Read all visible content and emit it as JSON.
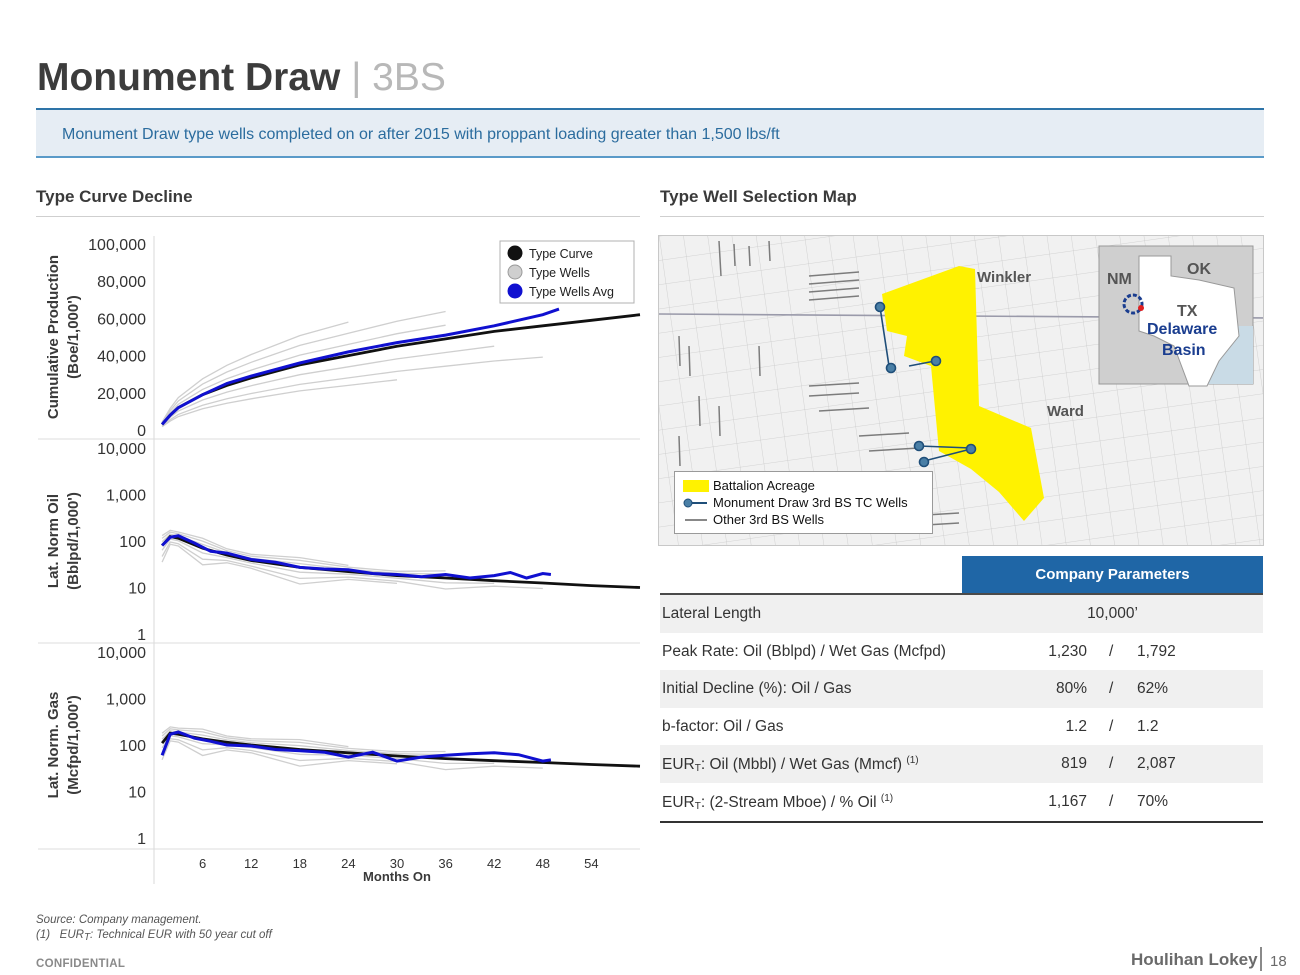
{
  "header": {
    "title": "Monument Draw",
    "separator": "|",
    "subtitle": "3BS",
    "banner": "Monument Draw type wells completed on or after 2015 with proppant loading greater than 1,500 lbs/ft"
  },
  "sections": {
    "left_title": "Type Curve Decline",
    "right_title": "Type Well Selection Map"
  },
  "chart_legend": [
    "Type Curve",
    "Type Wells",
    "Type Wells Avg"
  ],
  "colors": {
    "type_curve": "#111111",
    "type_wells": "#cfcfcf",
    "type_wells_avg": "#1010d0",
    "acreage": "#fff200",
    "accent_blue": "#1f66a6",
    "tc_wells": "#1f4e79"
  },
  "chart_data": [
    {
      "type": "line",
      "panel": "cumulative",
      "ylabel": "Cumulative Production (Boe/1,000')",
      "ylim": [
        0,
        100000
      ],
      "yticks": [
        "100,000",
        "80,000",
        "60,000",
        "40,000",
        "20,000",
        "0"
      ],
      "xlim": [
        0,
        60
      ],
      "series": [
        {
          "name": "Type Curve",
          "x": [
            1,
            2,
            3,
            6,
            9,
            12,
            18,
            24,
            30,
            36,
            42,
            48,
            54,
            60
          ],
          "y": [
            3000,
            8000,
            12000,
            19000,
            24000,
            28000,
            35000,
            40000,
            45000,
            49000,
            53000,
            56000,
            59000,
            62000
          ]
        },
        {
          "name": "Type Wells Avg",
          "x": [
            1,
            2,
            3,
            6,
            9,
            12,
            18,
            24,
            30,
            36,
            42,
            48,
            50
          ],
          "y": [
            3000,
            8000,
            12000,
            19000,
            25000,
            29000,
            36000,
            42000,
            47000,
            51000,
            56000,
            62000,
            65000
          ]
        }
      ]
    },
    {
      "type": "line",
      "panel": "oil_rate",
      "ylabel": "Lat. Norm Oil (Bblpd/1,000')",
      "yscale": "log",
      "ylim": [
        1,
        10000
      ],
      "yticks": [
        "10,000",
        "1,000",
        "100",
        "10",
        "1"
      ],
      "xlim": [
        0,
        60
      ],
      "series": [
        {
          "name": "Type Curve",
          "x": [
            1,
            2,
            3,
            6,
            9,
            12,
            18,
            24,
            30,
            36,
            42,
            48,
            54,
            60
          ],
          "y": [
            80,
            125,
            115,
            70,
            50,
            38,
            27,
            22,
            18,
            16,
            14,
            12.5,
            11,
            10
          ]
        },
        {
          "name": "Type Wells Avg",
          "x": [
            1,
            2,
            3,
            5,
            7,
            9,
            12,
            15,
            18,
            21,
            24,
            27,
            30,
            33,
            36,
            39,
            42,
            44,
            46,
            48,
            49
          ],
          "y": [
            80,
            120,
            130,
            90,
            60,
            55,
            40,
            35,
            27,
            25,
            24,
            20,
            19,
            17,
            19,
            16,
            18,
            21,
            16,
            20,
            19
          ]
        }
      ]
    },
    {
      "type": "line",
      "panel": "gas_rate",
      "ylabel": "Lat. Norm. Gas (Mcfpd/1,000')",
      "yscale": "log",
      "ylim": [
        1,
        10000
      ],
      "yticks": [
        "10,000",
        "1,000",
        "100",
        "10",
        "1"
      ],
      "xlabel": "Months On",
      "xlim": [
        0,
        60
      ],
      "xticks": [
        6,
        12,
        18,
        24,
        30,
        36,
        42,
        48,
        54
      ],
      "series": [
        {
          "name": "Type Curve",
          "x": [
            1,
            2,
            3,
            6,
            9,
            12,
            18,
            24,
            30,
            36,
            42,
            48,
            54,
            60
          ],
          "y": [
            110,
            180,
            170,
            135,
            115,
            100,
            80,
            68,
            58,
            51,
            46,
            42,
            38,
            35
          ]
        },
        {
          "name": "Type Wells Avg",
          "x": [
            1,
            2,
            3,
            5,
            7,
            9,
            12,
            15,
            18,
            21,
            24,
            27,
            30,
            33,
            36,
            39,
            42,
            45,
            48,
            49
          ],
          "y": [
            60,
            170,
            190,
            140,
            120,
            100,
            95,
            80,
            75,
            70,
            55,
            70,
            45,
            55,
            60,
            65,
            68,
            62,
            45,
            48
          ]
        }
      ]
    }
  ],
  "map": {
    "labels": {
      "winkler": "Winkler",
      "ward": "Ward",
      "nm": "NM",
      "ok": "OK",
      "tx": "TX",
      "delaware": "Delaware",
      "basin": "Basin"
    },
    "legend": [
      "Battalion Acreage",
      "Monument Draw 3rd BS TC Wells",
      "Other 3rd BS Wells"
    ]
  },
  "parameters": {
    "header": "Company Parameters",
    "rows": [
      {
        "label": "Lateral Length",
        "value": "10,000’"
      },
      {
        "label": "Peak Rate: Oil (Bblpd) / Wet Gas (Mcfpd)",
        "v1": "1,230",
        "sep": "/",
        "v2": "1,792"
      },
      {
        "label": "Initial Decline (%): Oil / Gas",
        "v1": "80%",
        "sep": "/",
        "v2": "62%"
      },
      {
        "label": "b-factor: Oil / Gas",
        "v1": "1.2",
        "sep": "/",
        "v2": "1.2"
      },
      {
        "label_pre": "EUR",
        "label_sub": "T",
        "label_post": ": Oil (Mbbl) / Wet Gas (Mmcf) ",
        "label_sup": "(1)",
        "v1": "819",
        "sep": "/",
        "v2": "2,087"
      },
      {
        "label_pre": "EUR",
        "label_sub": "T",
        "label_post": ": (2-Stream Mboe) / % Oil ",
        "label_sup": "(1)",
        "v1": "1,167",
        "sep": "/",
        "v2": "70%"
      }
    ]
  },
  "footer": {
    "source": "Source: Company management.",
    "note_num": "(1)",
    "note_pre": "EUR",
    "note_sub": "T",
    "note_post": ": Technical EUR with 50 year cut off",
    "confidential": "CONFIDENTIAL",
    "brand": "Houlihan Lokey",
    "page": "18"
  }
}
